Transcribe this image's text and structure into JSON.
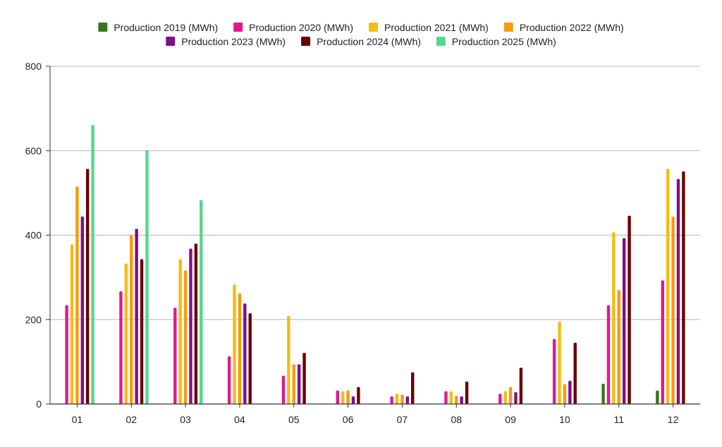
{
  "chart_data": {
    "type": "bar",
    "title": "",
    "xlabel": "",
    "ylabel": "",
    "ylim": [
      0,
      800
    ],
    "yticks": [
      0,
      200,
      400,
      600,
      800
    ],
    "grid": true,
    "legend_position": "top",
    "categories": [
      "01",
      "02",
      "03",
      "04",
      "05",
      "06",
      "07",
      "08",
      "09",
      "10",
      "11",
      "12"
    ],
    "series": [
      {
        "name": "Production 2019 (MWh)",
        "color": "#38761d",
        "values": [
          null,
          null,
          null,
          null,
          null,
          null,
          null,
          null,
          null,
          null,
          48,
          32
        ]
      },
      {
        "name": "Production 2020 (MWh)",
        "color": "#e0198f",
        "values": [
          234,
          267,
          228,
          113,
          67,
          32,
          18,
          30,
          24,
          154,
          234,
          293
        ]
      },
      {
        "name": "Production 2021 (MWh)",
        "color": "#f4bc12",
        "values": [
          378,
          333,
          343,
          283,
          209,
          30,
          24,
          30,
          30,
          195,
          407,
          557
        ]
      },
      {
        "name": "Production 2022 (MWh)",
        "color": "#f99b0c",
        "values": [
          515,
          400,
          316,
          262,
          94,
          32,
          22,
          20,
          40,
          47,
          270,
          444
        ]
      },
      {
        "name": "Production 2023 (MWh)",
        "color": "#7f0e8a",
        "values": [
          444,
          415,
          368,
          238,
          94,
          18,
          18,
          18,
          28,
          55,
          393,
          533
        ]
      },
      {
        "name": "Production 2024 (MWh)",
        "color": "#6b0101",
        "values": [
          557,
          343,
          380,
          215,
          121,
          40,
          75,
          53,
          86,
          145,
          446,
          551
        ]
      },
      {
        "name": "Production 2025 (MWh)",
        "color": "#57d68d",
        "values": [
          661,
          601,
          483,
          null,
          null,
          null,
          null,
          null,
          null,
          null,
          null,
          null
        ]
      }
    ]
  }
}
